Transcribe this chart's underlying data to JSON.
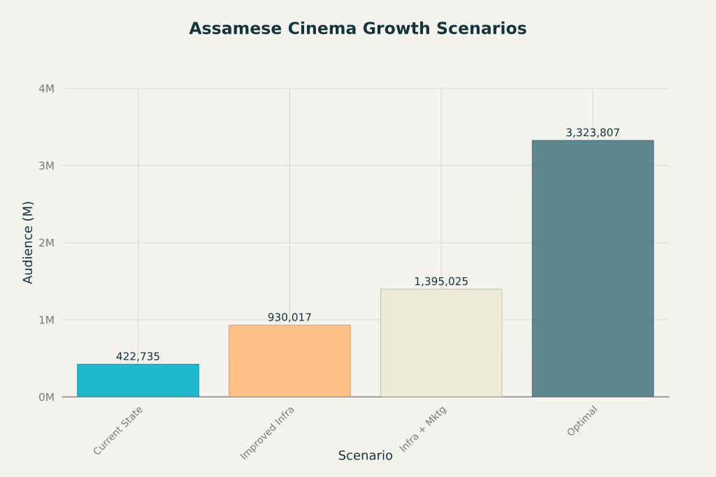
{
  "chart_data": {
    "type": "bar",
    "title": "Assamese Cinema Growth Scenarios",
    "xlabel": "Scenario",
    "ylabel": "Audience (M)",
    "categories": [
      "Current State",
      "Improved Infra",
      "Infra + Mktg",
      "Optimal"
    ],
    "values": [
      422735,
      930017,
      1395025,
      3323807
    ],
    "colors": [
      "#1fb8cd",
      "#ffc185",
      "#eceBd5",
      "#5d878f"
    ],
    "value_labels": [
      "422,735",
      "930,017",
      "1,395,025",
      "3,323,807"
    ],
    "ylim": [
      0,
      4000000
    ],
    "yticks": [
      {
        "value": 0,
        "label": "0M"
      },
      {
        "value": 1000000,
        "label": "1M"
      },
      {
        "value": 2000000,
        "label": "2M"
      },
      {
        "value": 3000000,
        "label": "3M"
      },
      {
        "value": 4000000,
        "label": "4M"
      }
    ],
    "grid": true
  }
}
